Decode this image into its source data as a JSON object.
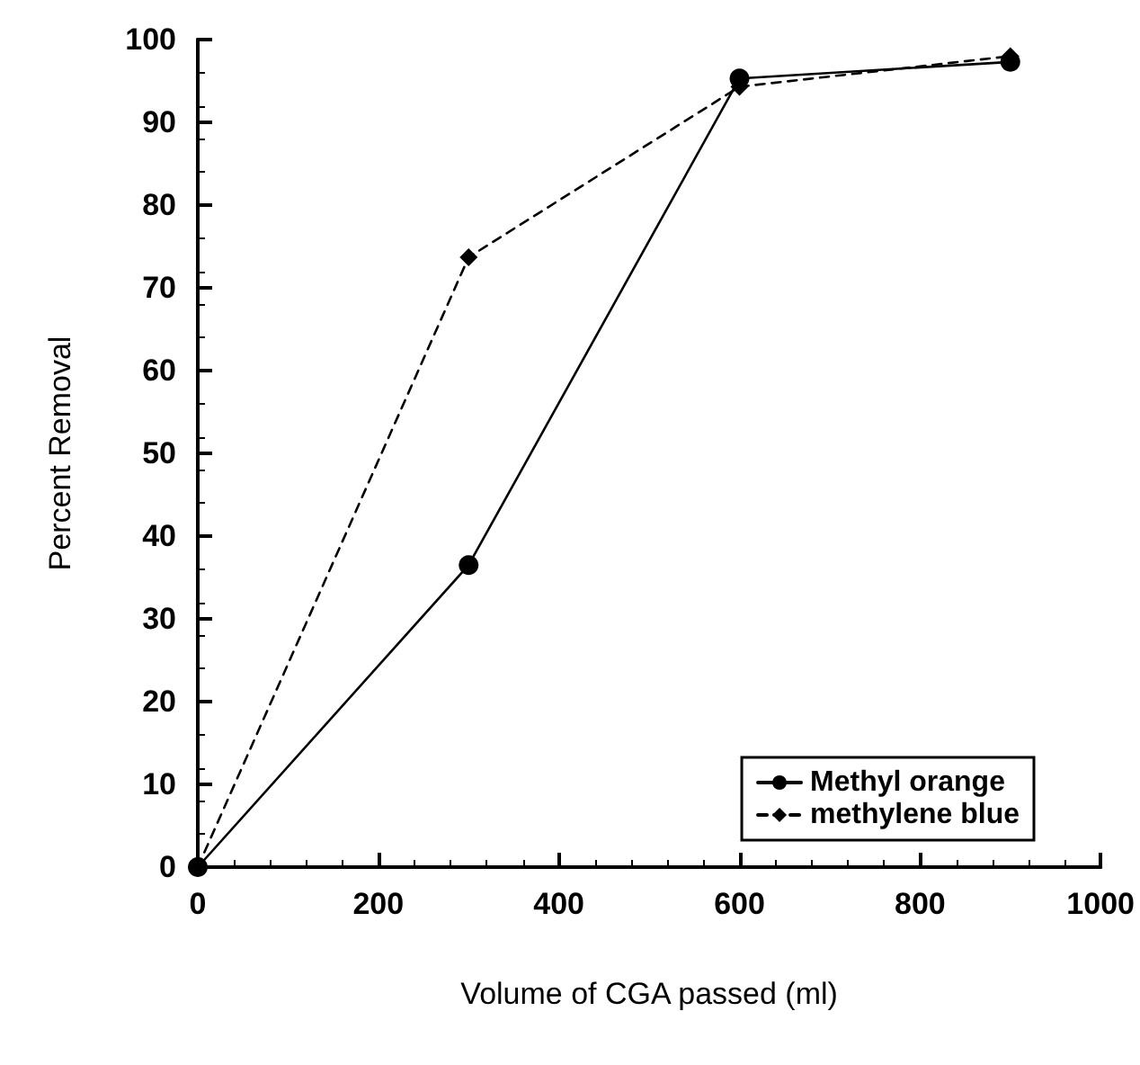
{
  "chart_data": {
    "type": "line",
    "xlabel": "Volume of CGA passed (ml)",
    "ylabel": "Percent Removal",
    "x": [
      0,
      300,
      600,
      900
    ],
    "series": [
      {
        "name": "Methyl orange",
        "color": "#000000",
        "marker": "circle",
        "line_style": "solid",
        "values": [
          0,
          36.5,
          95.3,
          97.3
        ]
      },
      {
        "name": "methylene blue",
        "color": "#000000",
        "marker": "diamond",
        "line_style": "dashed",
        "values": [
          0,
          73.7,
          94.3,
          98.0
        ]
      }
    ],
    "xlim": [
      0,
      1000
    ],
    "xticks": [
      0,
      200,
      400,
      600,
      800,
      1000
    ],
    "ylim": [
      0,
      100
    ],
    "yticks": [
      0,
      10,
      20,
      30,
      40,
      50,
      60,
      70,
      80,
      90,
      100
    ],
    "grid": false,
    "legend": "bottom right"
  }
}
